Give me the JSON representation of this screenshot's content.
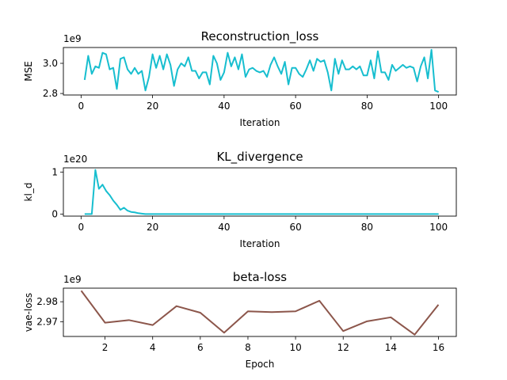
{
  "chart_data": [
    {
      "type": "line",
      "title": "Reconstruction_loss",
      "xlabel": "Iteration",
      "ylabel": "MSE",
      "y_offset_text": "1e9",
      "y_scale": 1000000000,
      "xlim": [
        -4.95,
        104.95
      ],
      "ylim": [
        2.79,
        3.105
      ],
      "xticks": [
        0,
        20,
        40,
        60,
        80,
        100
      ],
      "yticks": [
        2.8,
        3.0
      ],
      "ytick_labels": [
        "2.8",
        "3.0"
      ],
      "grid": false,
      "series": [
        {
          "color": "#17becf",
          "x": [
            1,
            2,
            3,
            4,
            5,
            6,
            7,
            8,
            9,
            10,
            11,
            12,
            13,
            14,
            15,
            16,
            17,
            18,
            19,
            20,
            21,
            22,
            23,
            24,
            25,
            26,
            27,
            28,
            29,
            30,
            31,
            32,
            33,
            34,
            35,
            36,
            37,
            38,
            39,
            40,
            41,
            42,
            43,
            44,
            45,
            46,
            47,
            48,
            49,
            50,
            51,
            52,
            53,
            54,
            55,
            56,
            57,
            58,
            59,
            60,
            61,
            62,
            63,
            64,
            65,
            66,
            67,
            68,
            69,
            70,
            71,
            72,
            73,
            74,
            75,
            76,
            77,
            78,
            79,
            80,
            81,
            82,
            83,
            84,
            85,
            86,
            87,
            88,
            89,
            90,
            91,
            92,
            93,
            94,
            95,
            96,
            97,
            98,
            99,
            100
          ],
          "y": [
            2.89,
            3.05,
            2.93,
            2.98,
            2.97,
            3.07,
            3.06,
            2.96,
            2.97,
            2.83,
            3.03,
            3.04,
            2.96,
            2.93,
            2.97,
            2.93,
            2.95,
            2.82,
            2.91,
            3.06,
            2.97,
            3.05,
            2.96,
            3.06,
            2.99,
            2.85,
            2.96,
            3.0,
            2.98,
            3.04,
            2.95,
            2.95,
            2.9,
            2.94,
            2.94,
            2.86,
            3.05,
            3.0,
            2.89,
            2.94,
            3.07,
            2.98,
            3.04,
            2.96,
            3.06,
            2.91,
            2.96,
            2.97,
            2.95,
            2.94,
            2.95,
            2.91,
            2.99,
            3.04,
            2.98,
            2.93,
            3.01,
            2.86,
            2.97,
            2.97,
            2.93,
            2.91,
            2.96,
            3.02,
            2.95,
            3.03,
            3.01,
            3.02,
            2.94,
            2.82,
            3.03,
            2.93,
            3.02,
            2.96,
            2.96,
            2.98,
            2.96,
            2.98,
            2.92,
            2.92,
            3.02,
            2.9,
            3.08,
            2.94,
            2.94,
            2.89,
            2.99,
            2.95,
            2.97,
            2.99,
            2.97,
            2.98,
            2.97,
            2.88,
            2.98,
            3.04,
            2.9,
            3.09,
            2.82,
            2.81
          ]
        }
      ]
    },
    {
      "type": "line",
      "title": "KL_divergence",
      "xlabel": "Iteration",
      "ylabel": "kl_d",
      "y_offset_text": "1e20",
      "y_scale": 1e+20,
      "xlim": [
        -4.95,
        104.95
      ],
      "ylim": [
        -0.05,
        1.1
      ],
      "xticks": [
        0,
        20,
        40,
        60,
        80,
        100
      ],
      "yticks": [
        0,
        1
      ],
      "ytick_labels": [
        "0",
        "1"
      ],
      "grid": false,
      "series": [
        {
          "color": "#17becf",
          "x": [
            1,
            2,
            3,
            4,
            5,
            6,
            7,
            8,
            9,
            10,
            11,
            12,
            13,
            14,
            15,
            16,
            17,
            18,
            19,
            20,
            30,
            40,
            50,
            60,
            70,
            80,
            90,
            100
          ],
          "y": [
            0,
            0,
            0,
            1.05,
            0.6,
            0.7,
            0.55,
            0.45,
            0.32,
            0.22,
            0.1,
            0.15,
            0.08,
            0.05,
            0.04,
            0.02,
            0.01,
            0,
            0,
            0,
            0,
            0,
            0,
            0,
            0,
            0,
            0,
            0
          ]
        }
      ]
    },
    {
      "type": "line",
      "title": "beta-loss",
      "xlabel": "Epoch",
      "ylabel": "vae-loss",
      "y_offset_text": "1e9",
      "y_scale": 1000000000,
      "xlim": [
        0.25,
        16.75
      ],
      "ylim": [
        2.9626,
        2.9868
      ],
      "xticks": [
        2,
        4,
        6,
        8,
        10,
        12,
        14,
        16
      ],
      "yticks": [
        2.97,
        2.98
      ],
      "ytick_labels": [
        "2.97",
        "2.98"
      ],
      "grid": false,
      "series": [
        {
          "color": "#8c564b",
          "x": [
            1,
            2,
            3,
            4,
            5,
            6,
            7,
            8,
            9,
            10,
            11,
            12,
            13,
            14,
            15,
            16
          ],
          "y": [
            2.9855,
            2.9695,
            2.9708,
            2.9683,
            2.9778,
            2.9745,
            2.9645,
            2.9752,
            2.9748,
            2.9752,
            2.9805,
            2.9653,
            2.9702,
            2.9722,
            2.9635,
            2.9785
          ]
        }
      ]
    }
  ]
}
